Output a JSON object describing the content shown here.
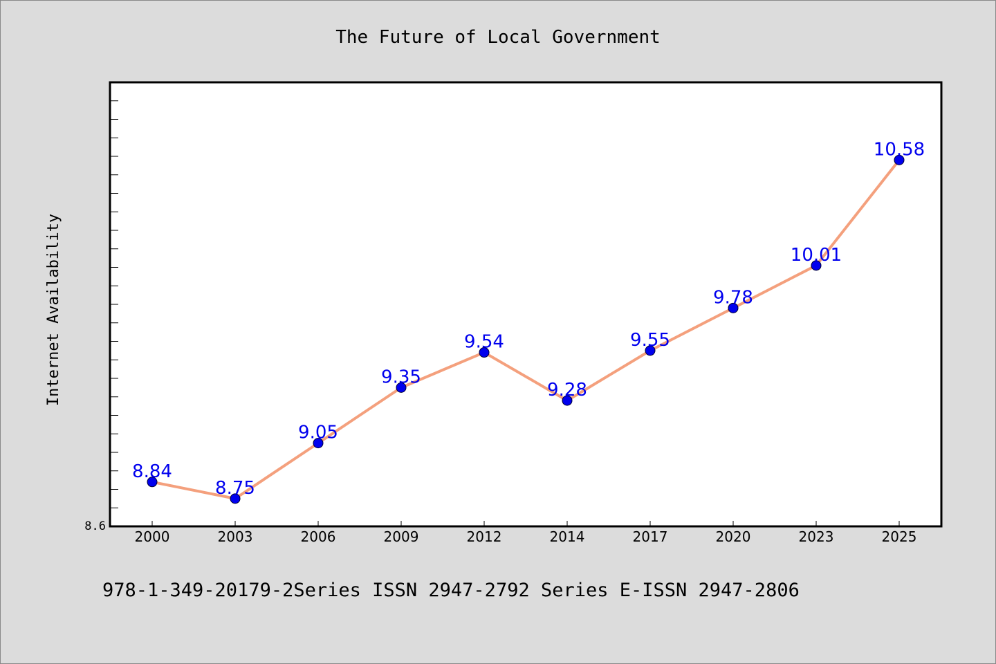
{
  "chart_data": {
    "type": "line",
    "title": "The Future of Local Government",
    "xlabel": "",
    "ylabel": "Internet Availability",
    "categories": [
      "2000",
      "2003",
      "2006",
      "2009",
      "2012",
      "2014",
      "2017",
      "2020",
      "2023",
      "2025"
    ],
    "series": [
      {
        "values": [
          8.84,
          8.75,
          9.05,
          9.35,
          9.54,
          9.28,
          9.55,
          9.78,
          10.01,
          10.58
        ]
      }
    ],
    "data_labels": [
      "8.84",
      "8.75",
      "9.05",
      "9.35",
      "9.54",
      "9.28",
      "9.55",
      "9.78",
      "10.01",
      "10.58"
    ],
    "ylim": [
      8.6,
      11.0
    ],
    "ytick_labels": [
      "8.6"
    ],
    "grid": false,
    "legend": "none",
    "colors": {
      "line": "#f4a07d",
      "marker": "#0000ee",
      "marker_edge": "#000033",
      "data_label": "#0000ee",
      "background": "#dcdcdc",
      "plot_background": "#ffffff"
    }
  },
  "footer": {
    "text": "978-1-349-20179-2Series ISSN 2947-2792 Series E-ISSN 2947-2806"
  }
}
